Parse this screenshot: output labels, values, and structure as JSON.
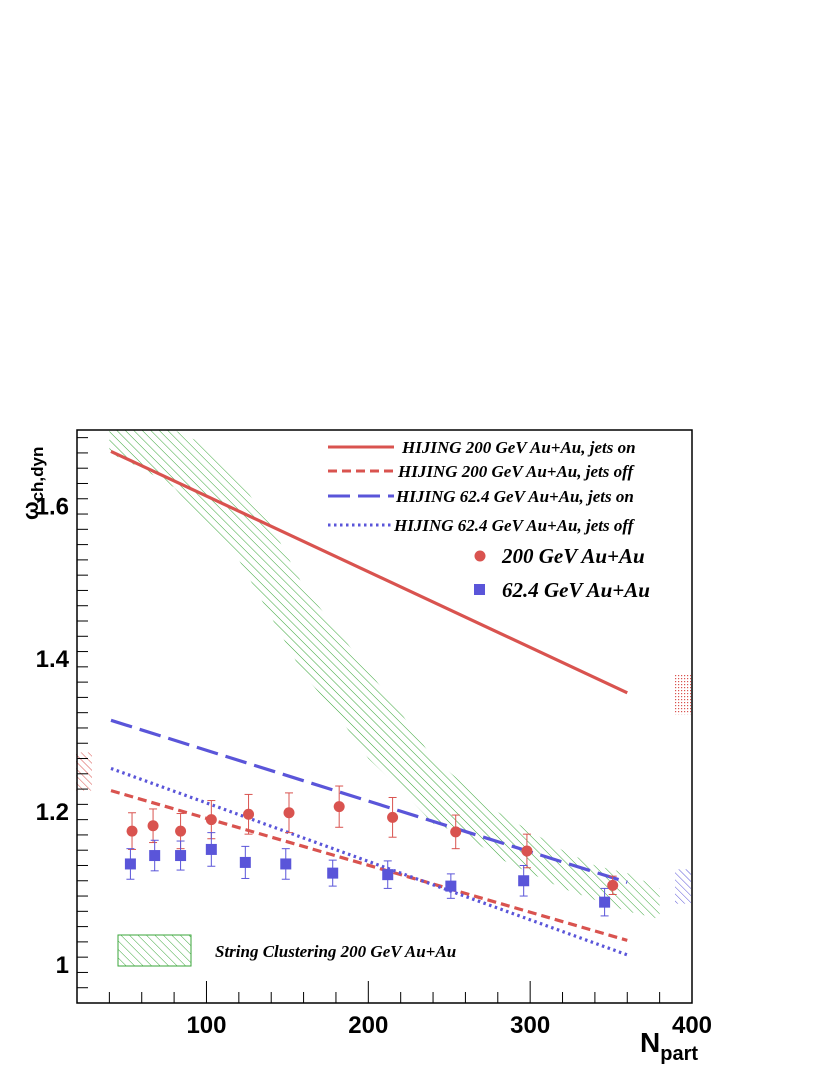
{
  "chart_data": {
    "type": "scatter",
    "xlabel_main": "N",
    "xlabel_sub": "part",
    "ylabel_main": "ω",
    "ylabel_sub": "ch,dyn",
    "xlim": [
      20,
      400
    ],
    "ylim": [
      0.95,
      1.7
    ],
    "x_ticks": [
      100,
      200,
      300,
      400
    ],
    "x_tick_labels": [
      "100",
      "200",
      "300",
      "400"
    ],
    "y_ticks": [
      1.0,
      1.2,
      1.4,
      1.6
    ],
    "y_tick_labels": [
      "1",
      "1.2",
      "1.4",
      "1.6"
    ],
    "grid": false,
    "legend_position": "top-right",
    "colors": {
      "red": "#d9534f",
      "blue": "#5a55d9",
      "green": "#3aa63a"
    },
    "series": [
      {
        "name": "HIJING 200 GeV Au+Au, jets on",
        "kind": "line",
        "style": "solid",
        "color": "#d9534f",
        "x": [
          41,
          360
        ],
        "y": [
          1.672,
          1.356
        ]
      },
      {
        "name": "HIJING 200 GeV Au+Au, jets off",
        "kind": "line",
        "style": "dashed",
        "color": "#d9534f",
        "x": [
          41,
          360
        ],
        "y": [
          1.228,
          1.032
        ]
      },
      {
        "name": "HIJING 62.4 GeV Au+Au, jets on",
        "kind": "line",
        "style": "longdash",
        "color": "#5a55d9",
        "x": [
          41,
          360
        ],
        "y": [
          1.32,
          1.108
        ]
      },
      {
        "name": "HIJING 62.4 GeV Au+Au, jets off",
        "kind": "line",
        "style": "dotted",
        "color": "#5a55d9",
        "x": [
          41,
          360
        ],
        "y": [
          1.257,
          1.013
        ]
      },
      {
        "name": "200 GeV Au+Au",
        "kind": "points",
        "marker": "circle",
        "color": "#d9534f",
        "x": [
          54,
          67,
          84,
          103,
          126,
          151,
          182,
          215,
          254,
          298,
          351
        ],
        "y": [
          1.175,
          1.182,
          1.175,
          1.19,
          1.197,
          1.199,
          1.207,
          1.193,
          1.174,
          1.149,
          1.104
        ],
        "err": [
          0.024,
          0.022,
          0.023,
          0.025,
          0.026,
          0.026,
          0.027,
          0.026,
          0.022,
          0.022,
          0.012
        ]
      },
      {
        "name": "62.4 GeV Au+Au",
        "kind": "points",
        "marker": "square",
        "color": "#5a55d9",
        "x": [
          53,
          68,
          84,
          103,
          124,
          149,
          178,
          212,
          251,
          296,
          346
        ],
        "y": [
          1.132,
          1.143,
          1.143,
          1.151,
          1.134,
          1.132,
          1.12,
          1.118,
          1.103,
          1.11,
          1.082
        ],
        "err": [
          0.02,
          0.02,
          0.019,
          0.022,
          0.021,
          0.02,
          0.017,
          0.018,
          0.016,
          0.02,
          0.018
        ]
      },
      {
        "name": "String Clustering 200 GeV Au+Au",
        "kind": "band",
        "color": "#3aa63a",
        "x": [
          40,
          60,
          80,
          100,
          120,
          140,
          160,
          180,
          200,
          220,
          240,
          260,
          280,
          300,
          320,
          340,
          360,
          380
        ],
        "y_low": [
          1.67,
          1.65,
          1.625,
          1.575,
          1.53,
          1.455,
          1.38,
          1.33,
          1.27,
          1.23,
          1.185,
          1.17,
          1.14,
          1.12,
          1.1,
          1.085,
          1.07,
          1.06
        ],
        "y_high": [
          1.7,
          1.7,
          1.7,
          1.68,
          1.635,
          1.575,
          1.495,
          1.44,
          1.385,
          1.33,
          1.27,
          1.235,
          1.2,
          1.175,
          1.15,
          1.13,
          1.12,
          1.1
        ]
      }
    ],
    "systematic_boxes": [
      {
        "color": "#d9534f",
        "pattern": "dots",
        "side": "right",
        "y_low": 1.328,
        "y_high": 1.38
      },
      {
        "color": "#5a55d9",
        "pattern": "hatch",
        "side": "right",
        "y_low": 1.08,
        "y_high": 1.125
      },
      {
        "color": "#d9534f",
        "pattern": "hatch",
        "side": "left",
        "y_low": 1.228,
        "y_high": 1.278
      }
    ]
  }
}
